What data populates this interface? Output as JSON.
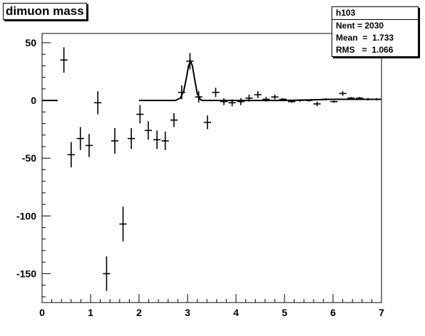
{
  "title": "dimuon mass",
  "stats": {
    "name": "h103",
    "entries": "Nent = 2030",
    "mean": "Mean  =  1.733",
    "rms": "RMS   =  1.066"
  },
  "colors": {
    "marks": "#000000",
    "background": "#ffffff"
  },
  "chart_data": {
    "type": "scatter",
    "title": "dimuon mass",
    "xlabel": "",
    "ylabel": "",
    "xlim": [
      0,
      7
    ],
    "ylim": [
      -175,
      58
    ],
    "grid": false,
    "x_ticks": [
      "0",
      "1",
      "2",
      "3",
      "4",
      "5",
      "6",
      "7"
    ],
    "y_ticks": [
      "50",
      "0",
      "-50",
      "-100",
      "-150"
    ],
    "bin_half_width": 0.075,
    "series": [
      {
        "style": "error-bars",
        "x": [
          0.45,
          0.6,
          0.79,
          0.97,
          1.15,
          1.33,
          1.5,
          1.67,
          1.84,
          2.02,
          2.19,
          2.37,
          2.54,
          2.72,
          2.88,
          3.05,
          3.23,
          3.41,
          3.58,
          3.75,
          3.92,
          4.1,
          4.27,
          4.45,
          4.62,
          4.8,
          4.97,
          5.15,
          5.32,
          5.5,
          5.67,
          5.85,
          6.02,
          6.2,
          6.37,
          6.55,
          6.72,
          6.9
        ],
        "y": [
          35,
          -47,
          -33,
          -39,
          -2,
          -150,
          -35,
          -107,
          -33,
          -12,
          -26,
          -34,
          -35,
          -17,
          7,
          34,
          3,
          -19,
          7,
          -1,
          -2,
          -1,
          2,
          5,
          1,
          3,
          1,
          -1,
          0,
          0,
          -3,
          1,
          -1,
          6,
          2,
          2,
          1,
          1
        ],
        "err": [
          11,
          11,
          10,
          10,
          10,
          15,
          11,
          15,
          9,
          8,
          8,
          8,
          8,
          6,
          6,
          7,
          5,
          6,
          4,
          3,
          3,
          3,
          3,
          3,
          2,
          2,
          1,
          1,
          1,
          1,
          2,
          1,
          1,
          2,
          1,
          1,
          1,
          1
        ]
      },
      {
        "style": "fit-line",
        "x": [
          0.0,
          0.32,
          2.0,
          2.75,
          2.85,
          2.92,
          2.98,
          3.02,
          3.06,
          3.1,
          3.14,
          3.2,
          3.26,
          3.3,
          3.5,
          4.0,
          5.0,
          6.0,
          7.0
        ],
        "y": [
          0,
          0,
          0,
          0,
          2,
          8,
          20,
          30,
          34,
          30,
          20,
          6,
          1,
          0,
          0,
          0,
          0,
          1,
          1
        ],
        "breaks_after": [
          1
        ]
      }
    ]
  }
}
